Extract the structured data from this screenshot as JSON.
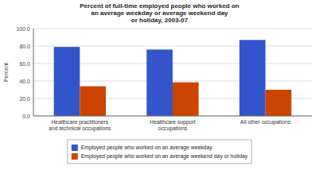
{
  "chart_data": {
    "type": "bar",
    "title": "Percent of full-time employed people who worked on\nan average weekday or average weekend day\nor holiday, 2003-07",
    "categories": [
      "Healthcare practitioners\nand technical occupations",
      "Healthcare support\noccupations",
      "All other occupations"
    ],
    "series": [
      {
        "name": "Employed people who worked on an average weekday",
        "color": "#3355CC",
        "values": [
          79.0,
          76.0,
          87.0
        ]
      },
      {
        "name": "Employed people who worked on an average weekend day or holiday",
        "color": "#CC4400",
        "values": [
          34.0,
          38.5,
          30.0
        ]
      }
    ],
    "ylabel": "Percent",
    "ylim": [
      0,
      100
    ],
    "yticks": [
      {
        "value": 0,
        "label": "0.0"
      },
      {
        "value": 20,
        "label": "20.0"
      },
      {
        "value": 40,
        "label": "40.0"
      },
      {
        "value": 60,
        "label": "60.0"
      },
      {
        "value": 80,
        "label": "80.0"
      },
      {
        "value": 100,
        "label": "100.0"
      }
    ],
    "grid": true,
    "legend": "bottom"
  }
}
